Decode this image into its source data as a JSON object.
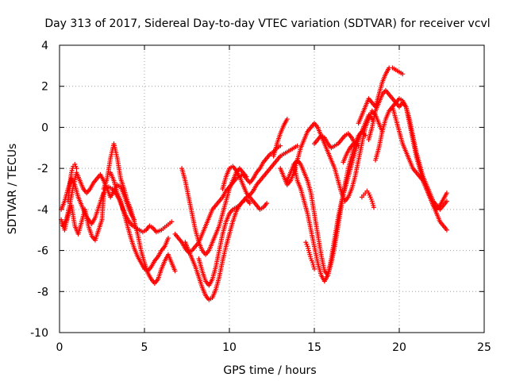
{
  "chart_data": {
    "type": "scatter",
    "title": "Day 313 of 2017, Sidereal Day-to-day VTEC variation (SDTVAR) for receiver vcvl",
    "xlabel": "GPS time / hours",
    "ylabel": "SDTVAR / TECUs",
    "xlim": [
      0,
      25
    ],
    "ylim": [
      -10,
      4
    ],
    "xticks": [
      0,
      5,
      10,
      15,
      20,
      25
    ],
    "yticks": [
      -10,
      -8,
      -6,
      -4,
      -2,
      0,
      2,
      4
    ],
    "xtick_labels": [
      "0",
      "5",
      "10",
      "15",
      "20",
      "25"
    ],
    "ytick_labels": [
      "-10",
      "-8",
      "-6",
      "-4",
      "-2",
      "0",
      "2",
      "4"
    ],
    "grid": true,
    "marker": "plus",
    "color": "#ff0000",
    "series": [
      {
        "name": "s1",
        "x": [
          0.1,
          0.3,
          0.5,
          0.7,
          0.9,
          1.1,
          1.3,
          1.5,
          1.7,
          1.9,
          2.1,
          2.3,
          2.5,
          2.6
        ],
        "y": [
          -4.5,
          -5.0,
          -4.3,
          -3.8,
          -4.8,
          -5.2,
          -4.6,
          -4.0,
          -4.8,
          -5.3,
          -5.5,
          -5.0,
          -4.5,
          -3.2
        ]
      },
      {
        "name": "s2",
        "x": [
          0.1,
          0.3,
          0.5,
          0.7,
          0.9,
          1.1,
          1.3,
          1.5,
          1.7,
          1.9,
          2.1,
          2.3,
          2.5,
          2.7,
          2.9,
          3.1,
          3.3,
          3.5,
          3.7,
          3.9,
          4.1,
          4.3,
          4.5,
          4.7,
          4.9,
          5.1,
          5.3,
          5.5,
          5.7,
          6.0,
          6.3,
          6.6
        ],
        "y": [
          -4.0,
          -3.6,
          -3.0,
          -2.5,
          -2.8,
          -3.4,
          -3.8,
          -4.2,
          -4.5,
          -4.7,
          -4.4,
          -3.9,
          -3.4,
          -3.0,
          -2.9,
          -3.0,
          -3.2,
          -3.5,
          -3.9,
          -4.3,
          -4.6,
          -4.8,
          -4.9,
          -5.0,
          -5.1,
          -5.0,
          -4.8,
          -4.9,
          -5.1,
          -5.0,
          -4.8,
          -4.6
        ]
      },
      {
        "name": "s3",
        "x": [
          0.2,
          0.4,
          0.6,
          0.8,
          1.0,
          1.2,
          1.4,
          1.6,
          1.8,
          2.0,
          2.2,
          2.4,
          2.6,
          2.8,
          3.0,
          3.2,
          3.4,
          3.6,
          3.8,
          4.0,
          4.2,
          4.4
        ],
        "y": [
          -4.8,
          -4.5,
          -3.8,
          -2.9,
          -2.2,
          -2.6,
          -3.0,
          -3.2,
          -3.0,
          -2.7,
          -2.5,
          -2.3,
          -2.6,
          -3.0,
          -3.4,
          -3.1,
          -2.8,
          -2.9,
          -3.3,
          -3.8,
          -4.2,
          -4.5
        ]
      },
      {
        "name": "s4",
        "x": [
          0.5,
          0.6,
          0.7,
          0.8,
          0.9,
          1.0
        ],
        "y": [
          -3.6,
          -2.8,
          -2.2,
          -1.9,
          -1.8,
          -2.0
        ]
      },
      {
        "name": "s5",
        "x": [
          2.6,
          2.8,
          3.0,
          3.2,
          3.4,
          3.6,
          3.8,
          4.0,
          4.2,
          4.4,
          4.6,
          4.8,
          5.0,
          5.2,
          5.4,
          5.6,
          5.8,
          6.0,
          6.2,
          6.4,
          6.6,
          6.8
        ],
        "y": [
          -3.0,
          -2.5,
          -1.5,
          -0.8,
          -1.5,
          -2.5,
          -3.0,
          -3.6,
          -4.0,
          -4.6,
          -5.2,
          -6.0,
          -6.6,
          -7.1,
          -7.4,
          -7.6,
          -7.4,
          -6.9,
          -6.5,
          -6.2,
          -6.6,
          -7.0
        ]
      },
      {
        "name": "s6",
        "x": [
          3.0,
          3.2,
          3.4,
          3.6,
          3.8,
          4.0,
          4.2,
          4.4,
          4.6,
          4.8,
          5.0,
          5.2,
          5.4,
          5.6,
          5.8,
          6.0,
          6.2,
          6.4
        ],
        "y": [
          -2.2,
          -2.6,
          -3.2,
          -3.6,
          -4.2,
          -4.8,
          -5.4,
          -5.9,
          -6.3,
          -6.6,
          -6.9,
          -7.0,
          -6.8,
          -6.5,
          -6.3,
          -6.0,
          -5.8,
          -5.4
        ]
      },
      {
        "name": "s7",
        "x": [
          6.8,
          7.0,
          7.2,
          7.4,
          7.6,
          7.8,
          8.0,
          8.2,
          8.4,
          8.6,
          8.8,
          9.0,
          9.2,
          9.4,
          9.6,
          9.8,
          10.0,
          10.2,
          10.4,
          10.6,
          10.8,
          11.0,
          11.2,
          11.4,
          11.6,
          11.8,
          12.0,
          12.2,
          12.4,
          12.6,
          12.8,
          13.0
        ],
        "y": [
          -5.2,
          -5.4,
          -5.6,
          -5.9,
          -6.1,
          -6.0,
          -5.8,
          -5.6,
          -5.2,
          -4.8,
          -4.4,
          -4.0,
          -3.8,
          -3.6,
          -3.4,
          -3.1,
          -2.9,
          -2.7,
          -2.5,
          -2.4,
          -2.3,
          -2.5,
          -2.7,
          -2.5,
          -2.2,
          -2.0,
          -1.7,
          -1.5,
          -1.3,
          -1.2,
          -1.0,
          -0.9
        ]
      },
      {
        "name": "s8",
        "x": [
          7.4,
          7.6,
          7.8,
          8.0,
          8.2,
          8.4,
          8.6,
          8.8,
          9.0,
          9.2,
          9.4,
          9.6,
          9.8,
          10.0,
          10.2,
          10.4,
          10.6,
          10.8,
          11.0,
          11.2
        ],
        "y": [
          -5.6,
          -6.0,
          -6.4,
          -6.8,
          -7.3,
          -7.8,
          -8.2,
          -8.4,
          -8.3,
          -7.9,
          -7.3,
          -6.5,
          -5.8,
          -5.2,
          -4.6,
          -4.1,
          -3.8,
          -3.6,
          -3.5,
          -3.7
        ]
      },
      {
        "name": "s9",
        "x": [
          7.2,
          7.4,
          7.6,
          7.8,
          8.0,
          8.2,
          8.4,
          8.6,
          8.8,
          9.0,
          9.2,
          9.4,
          9.6,
          9.8,
          10.0,
          10.2,
          10.4,
          10.6,
          10.8,
          11.0
        ],
        "y": [
          -2.0,
          -2.6,
          -3.4,
          -4.2,
          -5.0,
          -5.6,
          -6.0,
          -6.2,
          -6.0,
          -5.6,
          -5.2,
          -4.8,
          -4.2,
          -3.6,
          -3.0,
          -2.6,
          -2.2,
          -2.0,
          -2.2,
          -2.4
        ]
      },
      {
        "name": "s10",
        "x": [
          8.2,
          8.4,
          8.6,
          8.8,
          9.0,
          9.2,
          9.4,
          9.6,
          9.8,
          10.0,
          10.2,
          10.4,
          10.6,
          10.8,
          11.0,
          11.2,
          11.4,
          11.6,
          11.8,
          12.0,
          12.2,
          12.4,
          12.6,
          12.8,
          13.0,
          13.2,
          13.4,
          13.6,
          13.8,
          14.0
        ],
        "y": [
          -6.4,
          -7.0,
          -7.5,
          -7.7,
          -7.4,
          -6.8,
          -6.0,
          -5.2,
          -4.6,
          -4.2,
          -4.0,
          -3.9,
          -3.8,
          -3.6,
          -3.4,
          -3.3,
          -3.1,
          -2.8,
          -2.6,
          -2.4,
          -2.2,
          -2.0,
          -1.8,
          -1.6,
          -1.4,
          -1.3,
          -1.2,
          -1.1,
          -1.0,
          -0.9
        ]
      },
      {
        "name": "s11",
        "x": [
          13.0,
          13.2,
          13.4,
          13.6,
          13.8,
          14.0,
          14.2,
          14.4,
          14.6,
          14.8,
          15.0,
          15.2,
          15.4,
          15.6,
          15.8,
          16.0,
          16.2,
          16.4,
          16.6,
          16.8,
          17.0,
          17.2,
          17.4,
          17.6,
          17.8,
          18.0,
          18.2,
          18.4,
          18.6,
          18.8,
          19.0
        ],
        "y": [
          -2.0,
          -2.4,
          -2.8,
          -2.6,
          -2.2,
          -1.6,
          -1.0,
          -0.6,
          -0.2,
          0.0,
          0.2,
          0.0,
          -0.4,
          -0.8,
          -1.2,
          -1.6,
          -2.0,
          -2.6,
          -3.2,
          -3.6,
          -3.4,
          -3.0,
          -2.4,
          -1.6,
          -0.8,
          0.0,
          0.4,
          0.8,
          0.6,
          0.2,
          -0.2
        ]
      },
      {
        "name": "s12",
        "x": [
          13.4,
          13.6,
          13.8,
          14.0,
          14.2,
          14.4,
          14.6,
          14.8,
          15.0,
          15.2,
          15.4,
          15.6,
          15.8,
          16.0,
          16.2,
          16.4,
          16.6,
          16.8,
          17.0,
          17.2,
          17.4,
          17.6,
          17.8,
          18.0
        ],
        "y": [
          -2.6,
          -2.2,
          -1.8,
          -1.6,
          -1.8,
          -2.2,
          -2.6,
          -3.2,
          -4.2,
          -5.2,
          -6.2,
          -7.0,
          -7.2,
          -6.6,
          -5.8,
          -4.8,
          -3.8,
          -2.8,
          -2.0,
          -1.4,
          -0.8,
          -0.4,
          -0.2,
          -0.4
        ]
      },
      {
        "name": "s13",
        "x": [
          13.8,
          14.0,
          14.2,
          14.4,
          14.6,
          14.8,
          15.0,
          15.2,
          15.4,
          15.6,
          15.8,
          16.0,
          16.2,
          16.4,
          16.6,
          16.8,
          17.0,
          17.2,
          17.4,
          17.6,
          17.8,
          18.0,
          18.2,
          18.4
        ],
        "y": [
          -1.8,
          -2.6,
          -3.0,
          -3.6,
          -4.2,
          -5.0,
          -5.8,
          -6.6,
          -7.2,
          -7.5,
          -7.2,
          -6.4,
          -5.4,
          -4.4,
          -3.6,
          -3.0,
          -2.4,
          -1.8,
          -1.2,
          -0.6,
          -0.2,
          0.2,
          0.6,
          0.4
        ]
      },
      {
        "name": "s14",
        "x": [
          15.0,
          15.2,
          15.4,
          15.6,
          15.8,
          16.0,
          16.2,
          16.4,
          16.6,
          16.8,
          17.0,
          17.2,
          17.4,
          17.6
        ],
        "y": [
          -0.8,
          -0.6,
          -0.4,
          -0.5,
          -0.8,
          -1.0,
          -0.9,
          -0.8,
          -0.6,
          -0.4,
          -0.3,
          -0.5,
          -0.8,
          -0.9
        ]
      },
      {
        "name": "s15",
        "x": [
          17.6,
          17.8,
          18.0,
          18.2,
          18.4,
          18.6,
          18.8,
          19.0,
          19.2,
          19.4,
          19.6,
          19.8,
          20.0,
          20.2
        ],
        "y": [
          0.2,
          0.6,
          1.0,
          1.4,
          1.2,
          1.0,
          1.6,
          2.2,
          2.6,
          2.9,
          2.9,
          2.8,
          2.7,
          2.6
        ]
      },
      {
        "name": "s16",
        "x": [
          18.2,
          18.4,
          18.6,
          18.8,
          19.0,
          19.2,
          19.4,
          19.6,
          19.8,
          20.0,
          20.2,
          20.4,
          20.6,
          20.8,
          21.0,
          21.2,
          21.4,
          21.6,
          21.8,
          22.0,
          22.2,
          22.4,
          22.6,
          22.8
        ],
        "y": [
          -0.6,
          0.0,
          0.8,
          1.2,
          1.6,
          1.8,
          1.6,
          1.4,
          1.2,
          1.0,
          1.2,
          1.0,
          0.4,
          -0.4,
          -1.2,
          -1.8,
          -2.4,
          -2.8,
          -3.2,
          -3.6,
          -3.8,
          -4.0,
          -3.8,
          -3.6
        ]
      },
      {
        "name": "s17",
        "x": [
          18.6,
          18.8,
          19.0,
          19.2,
          19.4,
          19.6,
          19.8,
          20.0,
          20.2,
          20.4,
          20.6,
          20.8,
          21.0,
          21.2,
          21.4,
          21.6,
          21.8,
          22.0,
          22.2,
          22.4,
          22.6,
          22.8
        ],
        "y": [
          -1.6,
          -1.0,
          -0.2,
          0.4,
          0.8,
          1.0,
          1.2,
          1.4,
          1.3,
          1.0,
          0.2,
          -0.6,
          -1.4,
          -2.0,
          -2.6,
          -3.0,
          -3.4,
          -3.8,
          -4.2,
          -4.6,
          -4.8,
          -5.0
        ]
      },
      {
        "name": "s18",
        "x": [
          19.6,
          19.8,
          20.0,
          20.2,
          20.4,
          20.6,
          20.8,
          21.0,
          21.2,
          21.4,
          21.6,
          21.8,
          22.0,
          22.2,
          22.4,
          22.6,
          22.8
        ],
        "y": [
          1.0,
          0.4,
          -0.2,
          -0.8,
          -1.2,
          -1.6,
          -2.0,
          -2.2,
          -2.4,
          -2.6,
          -3.0,
          -3.4,
          -3.8,
          -4.0,
          -3.8,
          -3.5,
          -3.2
        ]
      },
      {
        "name": "s19",
        "x": [
          9.6,
          9.8,
          10.0,
          10.2,
          10.4,
          10.6,
          10.8,
          11.0,
          11.2,
          11.4,
          11.6,
          11.8,
          12.0,
          12.2
        ],
        "y": [
          -3.0,
          -2.4,
          -2.0,
          -1.9,
          -2.1,
          -2.4,
          -2.8,
          -3.2,
          -3.4,
          -3.6,
          -3.8,
          -4.0,
          -3.9,
          -3.7
        ]
      },
      {
        "name": "s20",
        "x": [
          12.6,
          12.8,
          13.0,
          13.2,
          13.4
        ],
        "y": [
          -1.4,
          -0.8,
          -0.3,
          0.1,
          0.4
        ]
      },
      {
        "name": "s21",
        "x": [
          14.5,
          14.6,
          14.7,
          14.8,
          14.9,
          15.0
        ],
        "y": [
          -5.6,
          -5.8,
          -6.1,
          -6.4,
          -6.6,
          -6.9
        ]
      },
      {
        "name": "s22",
        "x": [
          16.7,
          16.9,
          17.1,
          17.3
        ],
        "y": [
          -1.7,
          -1.3,
          -1.0,
          -0.8
        ]
      },
      {
        "name": "s23",
        "x": [
          18.2,
          18.3,
          18.4,
          18.5
        ],
        "y": [
          -3.2,
          -3.4,
          -3.6,
          -3.9
        ]
      },
      {
        "name": "s24",
        "x": [
          17.8,
          17.9,
          18.0,
          18.1
        ],
        "y": [
          -3.4,
          -3.3,
          -3.2,
          -3.1
        ]
      }
    ]
  }
}
